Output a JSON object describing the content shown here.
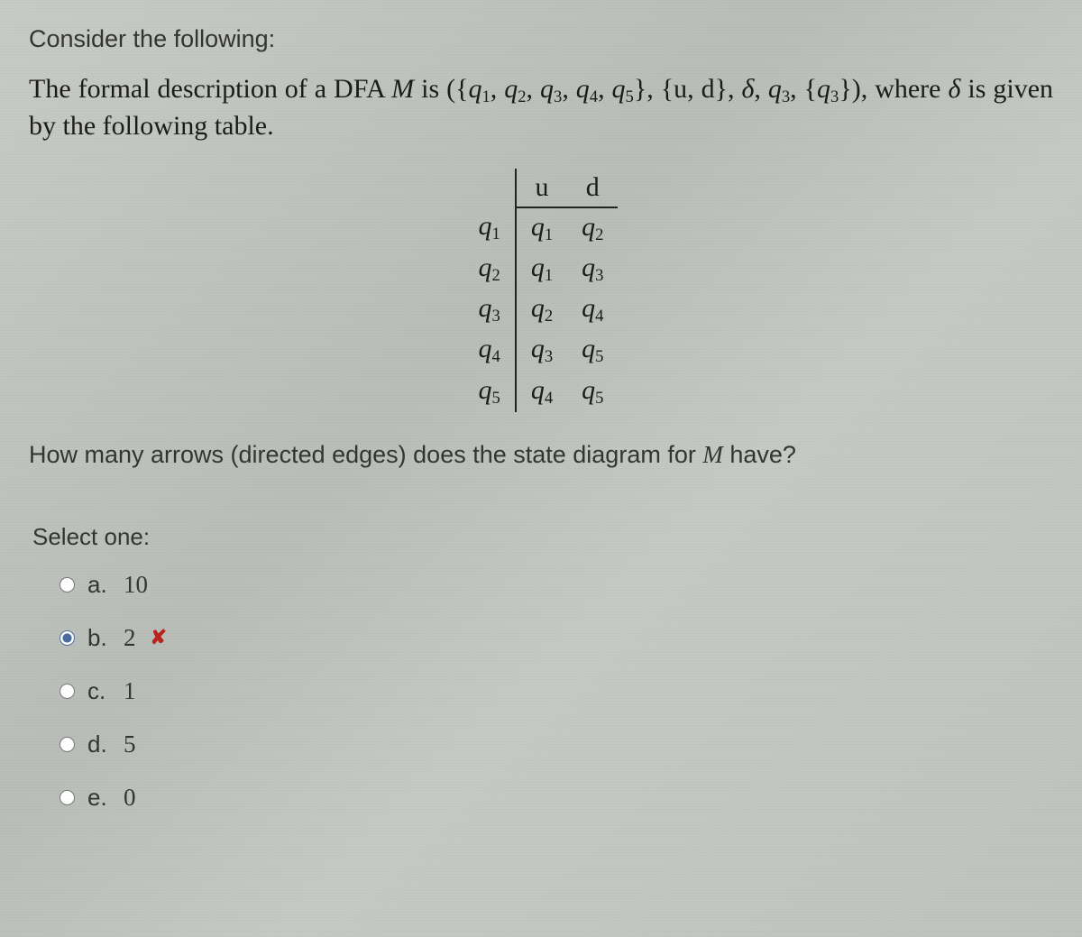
{
  "intro": "Consider the following:",
  "description_prefix": "The formal description of a DFA ",
  "dfa_name": "M",
  "description_mid": " is ",
  "dfa_tuple": "({q₁, q₂, q₃, q₄, q₅}, {u, d}, δ, q₃, {q₃}),",
  "description_tail_1": "where ",
  "delta_sym": "δ",
  "description_tail_2": " is given by the following table.",
  "table": {
    "col_headers": [
      "",
      "u",
      "d"
    ],
    "rows": [
      {
        "state": {
          "q": "q",
          "sub": "1"
        },
        "u": {
          "q": "q",
          "sub": "1"
        },
        "d": {
          "q": "q",
          "sub": "2"
        }
      },
      {
        "state": {
          "q": "q",
          "sub": "2"
        },
        "u": {
          "q": "q",
          "sub": "1"
        },
        "d": {
          "q": "q",
          "sub": "3"
        }
      },
      {
        "state": {
          "q": "q",
          "sub": "3"
        },
        "u": {
          "q": "q",
          "sub": "2"
        },
        "d": {
          "q": "q",
          "sub": "4"
        }
      },
      {
        "state": {
          "q": "q",
          "sub": "4"
        },
        "u": {
          "q": "q",
          "sub": "3"
        },
        "d": {
          "q": "q",
          "sub": "5"
        }
      },
      {
        "state": {
          "q": "q",
          "sub": "5"
        },
        "u": {
          "q": "q",
          "sub": "4"
        },
        "d": {
          "q": "q",
          "sub": "5"
        }
      }
    ]
  },
  "question_prefix": "How many arrows (directed edges) does the state diagram for ",
  "question_m": "M",
  "question_suffix": " have?",
  "select_one": "Select one:",
  "options": [
    {
      "letter": "a.",
      "value": "10",
      "checked": false,
      "marked_wrong": false
    },
    {
      "letter": "b.",
      "value": "2",
      "checked": true,
      "marked_wrong": true
    },
    {
      "letter": "c.",
      "value": "1",
      "checked": false,
      "marked_wrong": false
    },
    {
      "letter": "d.",
      "value": "5",
      "checked": false,
      "marked_wrong": false
    },
    {
      "letter": "e.",
      "value": "0",
      "checked": false,
      "marked_wrong": false
    }
  ],
  "wrong_mark": "✘",
  "colors": {
    "text": "#2a2a2a",
    "serif_text": "#1a1a1a",
    "wrong": "#b9231b",
    "rule": "#222222"
  }
}
